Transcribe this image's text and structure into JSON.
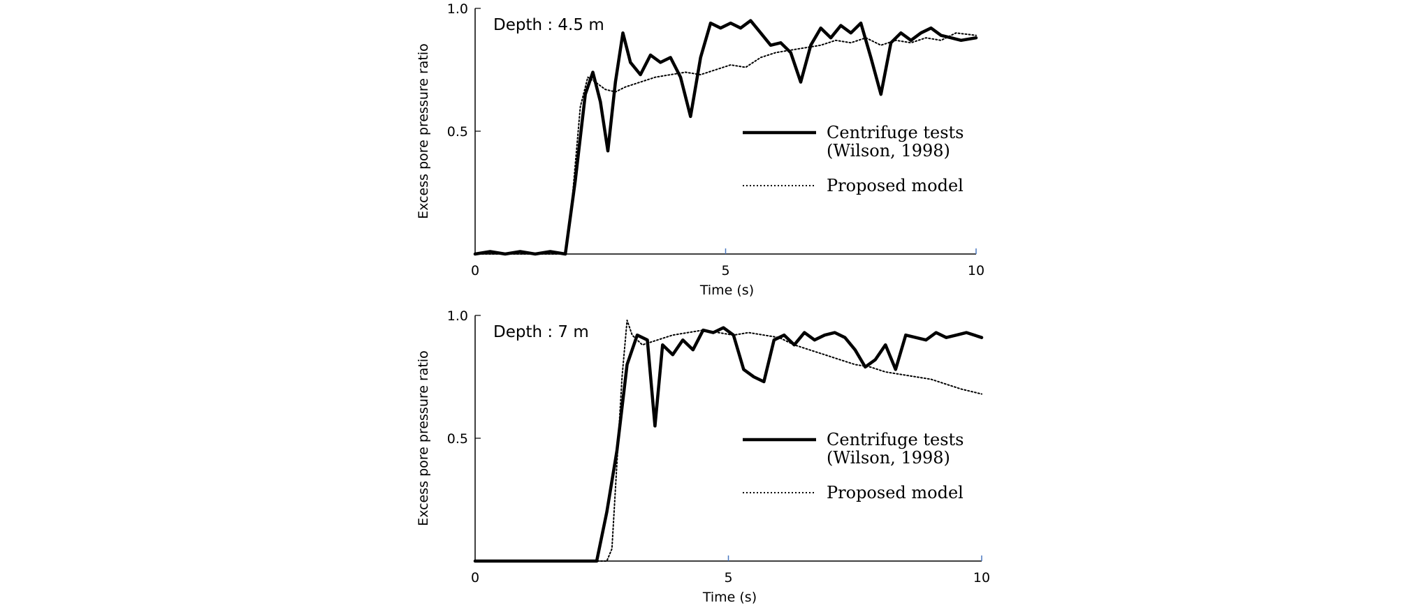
{
  "chart_data": [
    {
      "type": "line",
      "title": "",
      "annotation": "Depth : 4.5 m",
      "xlabel": "Time (s)",
      "ylabel": "Excess pore pressure ratio",
      "xlim": [
        0,
        10
      ],
      "ylim": [
        0,
        1.0
      ],
      "xticks": [
        "0",
        "5",
        "10"
      ],
      "yticks": [
        "0.5",
        "1.0"
      ],
      "grid": false,
      "legend_position": "right",
      "series": [
        {
          "name": "Centrifuge tests (Wilson, 1998)",
          "style": "solid",
          "x": [
            0,
            0.3,
            0.6,
            0.9,
            1.2,
            1.5,
            1.8,
            2.0,
            2.2,
            2.35,
            2.5,
            2.65,
            2.8,
            2.95,
            3.1,
            3.3,
            3.5,
            3.7,
            3.9,
            4.1,
            4.3,
            4.5,
            4.7,
            4.9,
            5.1,
            5.3,
            5.5,
            5.7,
            5.9,
            6.1,
            6.3,
            6.5,
            6.7,
            6.9,
            7.1,
            7.3,
            7.5,
            7.7,
            7.9,
            8.1,
            8.3,
            8.5,
            8.7,
            8.9,
            9.1,
            9.3,
            9.5,
            9.7,
            10.0
          ],
          "y": [
            0.0,
            0.01,
            0.0,
            0.01,
            0.0,
            0.01,
            0.0,
            0.3,
            0.65,
            0.74,
            0.62,
            0.42,
            0.7,
            0.9,
            0.78,
            0.73,
            0.81,
            0.78,
            0.8,
            0.72,
            0.56,
            0.8,
            0.94,
            0.92,
            0.94,
            0.92,
            0.95,
            0.9,
            0.85,
            0.86,
            0.82,
            0.7,
            0.85,
            0.92,
            0.88,
            0.93,
            0.9,
            0.94,
            0.8,
            0.65,
            0.86,
            0.9,
            0.87,
            0.9,
            0.92,
            0.89,
            0.88,
            0.87,
            0.88
          ]
        },
        {
          "name": "Proposed model",
          "style": "dotted",
          "x": [
            0,
            1.8,
            1.95,
            2.1,
            2.25,
            2.4,
            2.6,
            2.8,
            3.0,
            3.3,
            3.6,
            3.9,
            4.2,
            4.5,
            4.8,
            5.1,
            5.4,
            5.7,
            6.0,
            6.3,
            6.6,
            6.9,
            7.2,
            7.5,
            7.8,
            8.1,
            8.4,
            8.7,
            9.0,
            9.3,
            9.6,
            10.0
          ],
          "y": [
            0.0,
            0.0,
            0.25,
            0.6,
            0.72,
            0.7,
            0.67,
            0.66,
            0.68,
            0.7,
            0.72,
            0.73,
            0.74,
            0.73,
            0.75,
            0.77,
            0.76,
            0.8,
            0.82,
            0.83,
            0.84,
            0.85,
            0.87,
            0.86,
            0.88,
            0.85,
            0.87,
            0.86,
            0.88,
            0.87,
            0.9,
            0.89
          ]
        }
      ]
    },
    {
      "type": "line",
      "title": "",
      "annotation": "Depth : 7 m",
      "xlabel": "Time (s)",
      "ylabel": "Excess pore pressure ratio",
      "xlim": [
        0,
        10
      ],
      "ylim": [
        0,
        1.0
      ],
      "xticks": [
        "0",
        "5",
        "10"
      ],
      "yticks": [
        "0.5",
        "1.0"
      ],
      "grid": false,
      "legend_position": "right",
      "series": [
        {
          "name": "Centrifuge tests (Wilson, 1998)",
          "style": "solid",
          "x": [
            0,
            2.0,
            2.4,
            2.6,
            2.8,
            3.0,
            3.2,
            3.4,
            3.55,
            3.7,
            3.9,
            4.1,
            4.3,
            4.5,
            4.7,
            4.9,
            5.1,
            5.3,
            5.5,
            5.7,
            5.9,
            6.1,
            6.3,
            6.5,
            6.7,
            6.9,
            7.1,
            7.3,
            7.5,
            7.7,
            7.9,
            8.1,
            8.3,
            8.5,
            8.7,
            8.9,
            9.1,
            9.3,
            9.5,
            9.7,
            10.0
          ],
          "y": [
            0.0,
            0.0,
            0.0,
            0.2,
            0.45,
            0.8,
            0.92,
            0.9,
            0.55,
            0.88,
            0.84,
            0.9,
            0.86,
            0.94,
            0.93,
            0.95,
            0.92,
            0.78,
            0.75,
            0.73,
            0.9,
            0.92,
            0.88,
            0.93,
            0.9,
            0.92,
            0.93,
            0.91,
            0.86,
            0.79,
            0.82,
            0.88,
            0.78,
            0.92,
            0.91,
            0.9,
            0.93,
            0.91,
            0.92,
            0.93,
            0.91
          ]
        },
        {
          "name": "Proposed model",
          "style": "dotted",
          "x": [
            0,
            2.6,
            2.7,
            2.8,
            2.9,
            3.0,
            3.1,
            3.3,
            3.6,
            3.9,
            4.2,
            4.5,
            4.8,
            5.1,
            5.4,
            5.7,
            6.0,
            6.3,
            6.6,
            6.9,
            7.2,
            7.5,
            7.8,
            8.1,
            8.4,
            8.7,
            9.0,
            9.3,
            9.6,
            9.8,
            10.0
          ],
          "y": [
            0.0,
            0.0,
            0.05,
            0.4,
            0.75,
            0.98,
            0.92,
            0.88,
            0.9,
            0.92,
            0.93,
            0.94,
            0.93,
            0.92,
            0.93,
            0.92,
            0.91,
            0.88,
            0.86,
            0.84,
            0.82,
            0.8,
            0.79,
            0.77,
            0.76,
            0.75,
            0.74,
            0.72,
            0.7,
            0.69,
            0.68
          ]
        }
      ]
    }
  ]
}
